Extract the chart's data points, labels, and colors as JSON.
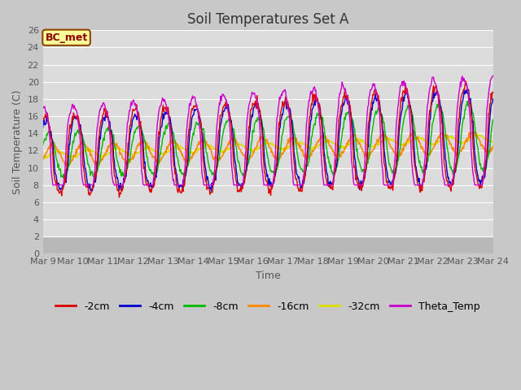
{
  "title": "Soil Temperatures Set A",
  "xlabel": "Time",
  "ylabel": "Soil Temperature (C)",
  "annotation": "BC_met",
  "ylim": [
    0,
    26
  ],
  "yticks": [
    0,
    2,
    4,
    6,
    8,
    10,
    12,
    14,
    16,
    18,
    20,
    22,
    24,
    26
  ],
  "x_labels": [
    "Mar 9",
    "Mar 10",
    "Mar 11",
    "Mar 12",
    "Mar 13",
    "Mar 14",
    "Mar 15",
    "Mar 16",
    "Mar 17",
    "Mar 18",
    "Mar 19",
    "Mar 20",
    "Mar 21",
    "Mar 22",
    "Mar 23",
    "Mar 24"
  ],
  "series": {
    "-2cm": {
      "color": "#dd0000"
    },
    "-4cm": {
      "color": "#0000cc"
    },
    "-8cm": {
      "color": "#00bb00"
    },
    "-16cm": {
      "color": "#ff8800"
    },
    "-32cm": {
      "color": "#dddd00"
    },
    "Theta_Temp": {
      "color": "#cc00cc"
    }
  },
  "plot_bg_upper": "#dcdcdc",
  "plot_bg_lower": "#b8b8b8",
  "lower_cutoff": 2,
  "grid_color": "#ffffff",
  "fig_bg": "#c8c8c8",
  "title_fontsize": 12,
  "axis_fontsize": 9,
  "tick_fontsize": 8,
  "legend_fontsize": 9
}
